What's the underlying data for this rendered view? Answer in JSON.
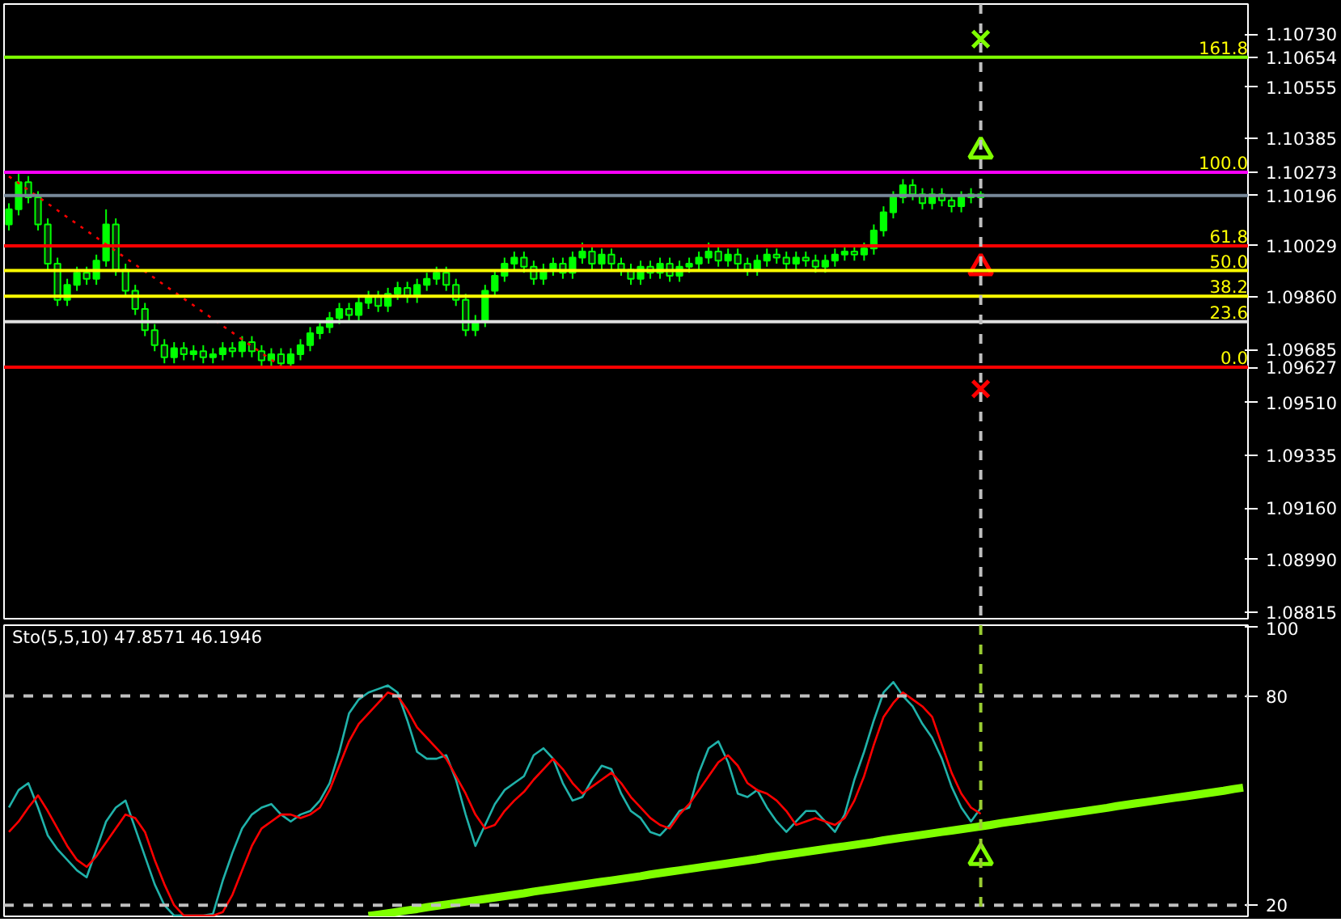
{
  "chart_data": [
    {
      "type": "candlestick",
      "color": "#00ff00",
      "tick_labels": "y",
      "ylim": [
        1.08794,
        1.1083
      ],
      "yticks": [
        {
          "value": 1.1073,
          "label": "1.10730"
        },
        {
          "value": 1.10654,
          "label": "1.10654"
        },
        {
          "value": 1.10555,
          "label": "1.10555"
        },
        {
          "value": 1.10385,
          "label": "1.10385"
        },
        {
          "value": 1.10273,
          "label": "1.10273"
        },
        {
          "value": 1.10196,
          "label": "1.10196"
        },
        {
          "value": 1.10029,
          "label": "1.10029"
        },
        {
          "value": 1.0986,
          "label": "1.09860"
        },
        {
          "value": 1.09685,
          "label": "1.09685"
        },
        {
          "value": 1.09627,
          "label": "1.09627"
        },
        {
          "value": 1.0951,
          "label": "1.09510"
        },
        {
          "value": 1.09335,
          "label": "1.09335"
        },
        {
          "value": 1.0916,
          "label": "1.09160"
        },
        {
          "value": 1.0899,
          "label": "1.08990"
        },
        {
          "value": 1.08815,
          "label": "1.08815"
        }
      ],
      "categories": [
        null,
        null,
        null,
        null,
        null,
        null,
        null,
        null,
        null,
        null,
        null,
        null,
        null,
        null,
        null,
        null,
        null,
        null,
        null,
        null,
        null,
        null,
        null,
        null,
        null,
        null,
        null,
        null,
        null,
        null,
        null,
        null,
        null,
        null,
        null,
        null,
        null,
        null,
        null,
        null,
        null,
        null,
        null,
        null,
        null,
        null,
        null,
        null,
        null,
        null,
        null,
        null,
        null,
        null,
        null,
        null,
        null,
        null,
        null,
        null,
        null,
        null,
        null,
        null,
        null,
        null,
        null,
        null,
        null,
        null,
        null,
        null,
        null,
        null,
        null,
        null,
        null,
        null,
        null,
        null,
        null,
        null,
        null,
        null,
        null,
        null,
        null,
        null,
        null,
        null,
        null,
        null,
        null,
        null,
        null,
        null,
        null,
        null,
        null,
        null,
        null,
        null,
        null,
        null,
        null,
        null,
        null,
        null,
        null,
        null,
        null,
        null,
        null,
        null,
        null,
        null,
        null,
        null,
        null,
        null,
        null,
        null,
        null,
        null,
        null,
        null,
        null,
        null
      ],
      "ohlc": [
        [
          1.101,
          1.1017,
          1.1008,
          1.1015
        ],
        [
          1.1015,
          1.1027,
          1.1013,
          1.1024
        ],
        [
          1.1024,
          1.1026,
          1.1017,
          1.1019
        ],
        [
          1.1019,
          1.1021,
          1.1008,
          1.101
        ],
        [
          1.101,
          1.1012,
          1.0995,
          1.0997
        ],
        [
          1.0997,
          1.0999,
          1.0983,
          1.0985
        ],
        [
          1.0985,
          1.0992,
          1.0983,
          1.099
        ],
        [
          1.099,
          1.0996,
          1.0988,
          1.0994
        ],
        [
          1.0994,
          1.0996,
          1.099,
          1.0992
        ],
        [
          1.0992,
          1.1,
          1.099,
          1.0998
        ],
        [
          1.0998,
          1.1015,
          1.0996,
          1.101
        ],
        [
          1.101,
          1.1012,
          1.0993,
          1.0995
        ],
        [
          1.0995,
          1.0997,
          1.0986,
          1.0988
        ],
        [
          1.0988,
          1.099,
          1.098,
          1.0982
        ],
        [
          1.0982,
          1.0984,
          1.0973,
          1.0975
        ],
        [
          1.0975,
          1.0977,
          1.0968,
          1.097
        ],
        [
          1.097,
          1.0972,
          1.0964,
          1.0966
        ],
        [
          1.0966,
          1.0971,
          1.0964,
          1.0969
        ],
        [
          1.0969,
          1.0971,
          1.0965,
          1.0967
        ],
        [
          1.0967,
          1.097,
          1.0965,
          1.0968
        ],
        [
          1.0968,
          1.097,
          1.0964,
          1.0966
        ],
        [
          1.0966,
          1.0969,
          1.0964,
          1.0967
        ],
        [
          1.0967,
          1.0971,
          1.0965,
          1.0969
        ],
        [
          1.0969,
          1.0971,
          1.0966,
          1.0968
        ],
        [
          1.0968,
          1.0973,
          1.0966,
          1.0971
        ],
        [
          1.0971,
          1.0973,
          1.0966,
          1.0968
        ],
        [
          1.0968,
          1.097,
          1.0963,
          1.0965
        ],
        [
          1.0965,
          1.0969,
          1.0963,
          1.0967
        ],
        [
          1.0967,
          1.0969,
          1.0963,
          1.0964
        ],
        [
          1.0964,
          1.0969,
          1.0963,
          1.0967
        ],
        [
          1.0967,
          1.0972,
          1.0965,
          1.097
        ],
        [
          1.097,
          1.0976,
          1.0968,
          1.0974
        ],
        [
          1.0974,
          1.0978,
          1.0972,
          1.0976
        ],
        [
          1.0976,
          1.0981,
          1.0974,
          1.0979
        ],
        [
          1.0979,
          1.0984,
          1.0977,
          1.0982
        ],
        [
          1.0982,
          1.0984,
          1.0978,
          1.098
        ],
        [
          1.098,
          1.0986,
          1.0978,
          1.0984
        ],
        [
          1.0984,
          1.0988,
          1.0982,
          1.0986
        ],
        [
          1.0986,
          1.0988,
          1.0981,
          1.0983
        ],
        [
          1.0983,
          1.0989,
          1.0981,
          1.0987
        ],
        [
          1.0987,
          1.0991,
          1.0985,
          1.0989
        ],
        [
          1.0989,
          1.0991,
          1.0984,
          1.0986
        ],
        [
          1.0986,
          1.0992,
          1.0984,
          1.099
        ],
        [
          1.099,
          1.0994,
          1.0988,
          1.0992
        ],
        [
          1.0992,
          1.0996,
          1.099,
          1.0994
        ],
        [
          1.0994,
          1.0996,
          1.0988,
          1.099
        ],
        [
          1.099,
          1.0992,
          1.0983,
          1.0985
        ],
        [
          1.0985,
          1.0987,
          1.0973,
          1.0975
        ],
        [
          1.0975,
          1.098,
          1.0973,
          1.0978
        ],
        [
          1.0978,
          1.099,
          1.0976,
          1.0988
        ],
        [
          1.0988,
          1.0995,
          1.0986,
          1.0993
        ],
        [
          1.0993,
          1.0999,
          1.0991,
          1.0997
        ],
        [
          1.0997,
          1.1001,
          1.0995,
          1.0999
        ],
        [
          1.0999,
          1.1001,
          1.0994,
          1.0996
        ],
        [
          1.0996,
          1.0998,
          1.099,
          1.0992
        ],
        [
          1.0992,
          1.0997,
          1.099,
          1.0995
        ],
        [
          1.0995,
          1.0999,
          1.0993,
          1.0997
        ],
        [
          1.0997,
          1.0999,
          1.0992,
          1.0994
        ],
        [
          1.0994,
          1.1001,
          1.0992,
          1.0999
        ],
        [
          1.0999,
          1.1004,
          1.0997,
          1.1001
        ],
        [
          1.1001,
          1.1003,
          1.0995,
          1.0997
        ],
        [
          1.0997,
          1.1002,
          1.0995,
          1.1
        ],
        [
          1.1,
          1.1002,
          1.0995,
          1.0997
        ],
        [
          1.0997,
          1.0999,
          1.0993,
          1.0995
        ],
        [
          1.0995,
          1.0997,
          1.099,
          1.0992
        ],
        [
          1.0992,
          1.0998,
          1.099,
          1.0996
        ],
        [
          1.0996,
          1.0998,
          1.0992,
          1.0994
        ],
        [
          1.0994,
          1.0999,
          1.0992,
          1.0997
        ],
        [
          1.0997,
          1.0999,
          1.0991,
          1.0993
        ],
        [
          1.0993,
          1.0998,
          1.0991,
          1.0996
        ],
        [
          1.0996,
          1.0999,
          1.0994,
          1.0997
        ],
        [
          1.0997,
          1.1001,
          1.0995,
          1.0999
        ],
        [
          1.0999,
          1.1004,
          1.0997,
          1.1001
        ],
        [
          1.1001,
          1.1003,
          1.0996,
          1.0998
        ],
        [
          1.0998,
          1.1002,
          1.0996,
          1.1
        ],
        [
          1.1,
          1.1002,
          1.0995,
          1.0997
        ],
        [
          1.0997,
          1.0999,
          1.0993,
          1.0995
        ],
        [
          1.0995,
          1.1,
          1.0993,
          1.0998
        ],
        [
          1.0998,
          1.1002,
          1.0996,
          1.1
        ],
        [
          1.1,
          1.1002,
          1.0997,
          1.0999
        ],
        [
          1.0999,
          1.1001,
          1.0995,
          1.0997
        ],
        [
          1.0997,
          1.1001,
          1.0995,
          1.0999
        ],
        [
          1.0999,
          1.1001,
          1.0996,
          1.0998
        ],
        [
          1.0998,
          1.1,
          1.0994,
          1.0996
        ],
        [
          1.0996,
          1.1,
          1.0994,
          1.0998
        ],
        [
          1.0998,
          1.1002,
          1.0996,
          1.1
        ],
        [
          1.1,
          1.1003,
          1.0998,
          1.1001
        ],
        [
          1.1001,
          1.1003,
          1.0998,
          1.1
        ],
        [
          1.1,
          1.1004,
          1.0998,
          1.1002
        ],
        [
          1.1002,
          1.101,
          1.1,
          1.1008
        ],
        [
          1.1008,
          1.1016,
          1.1006,
          1.1014
        ],
        [
          1.1014,
          1.1021,
          1.1012,
          1.1019
        ],
        [
          1.1019,
          1.1025,
          1.1017,
          1.1023
        ],
        [
          1.1023,
          1.1025,
          1.1018,
          1.102
        ],
        [
          1.102,
          1.1022,
          1.1015,
          1.1017
        ],
        [
          1.1017,
          1.1022,
          1.1015,
          1.102
        ],
        [
          1.102,
          1.1022,
          1.1016,
          1.1018
        ],
        [
          1.1018,
          1.102,
          1.1014,
          1.1016
        ],
        [
          1.1016,
          1.1021,
          1.1014,
          1.1019
        ],
        [
          1.1019,
          1.1022,
          1.1017,
          1.102
        ],
        [
          1.102,
          1.1021,
          1.1018,
          1.1019
        ],
        null,
        null,
        null,
        null,
        null,
        null,
        null,
        null,
        null,
        null,
        null,
        null,
        null,
        null,
        null,
        null,
        null,
        null,
        null,
        null,
        null,
        null,
        null,
        null,
        null,
        null,
        null
      ],
      "series": [
        {
          "type": "line",
          "color": "#ff0000",
          "line_style": "dotted",
          "values": [
            1.10259,
            1.10237,
            1.10214,
            1.10192,
            1.10169,
            1.10147,
            1.10124,
            1.10102,
            1.10079,
            1.10057,
            1.10034,
            1.10012,
            1.09989,
            1.09967,
            1.09944,
            1.09922,
            1.09899,
            1.09877,
            1.09854,
            1.09832,
            1.09809,
            1.09787,
            1.09764,
            1.09742,
            1.09719,
            1.09697,
            1.09674,
            1.09652,
            1.09629,
            null,
            null,
            null,
            null,
            null,
            null,
            null,
            null,
            null,
            null,
            null,
            null,
            null,
            null,
            null,
            null,
            null,
            null,
            null,
            null,
            null,
            null,
            null,
            null,
            null,
            null,
            null,
            null,
            null,
            null,
            null,
            null,
            null,
            null,
            null,
            null,
            null,
            null,
            null,
            null,
            null,
            null,
            null,
            null,
            null,
            null,
            null,
            null,
            null,
            null,
            null,
            null,
            null,
            null,
            null,
            null,
            null,
            null,
            null,
            null,
            null,
            null,
            null,
            null,
            null,
            null,
            null,
            null,
            null,
            null,
            null,
            null,
            null,
            null,
            null,
            null,
            null,
            null,
            null,
            null,
            null,
            null,
            null,
            null,
            null,
            null,
            null,
            null,
            null,
            null,
            null,
            null,
            null,
            null,
            null,
            null,
            null,
            null,
            null
          ]
        },
        {
          "type": "scatter",
          "marker": "cross",
          "color": "#7fff00",
          "values": [
            null,
            null,
            null,
            null,
            null,
            null,
            null,
            null,
            null,
            null,
            null,
            null,
            null,
            null,
            null,
            null,
            null,
            null,
            null,
            null,
            null,
            null,
            null,
            null,
            null,
            null,
            null,
            null,
            null,
            null,
            null,
            null,
            null,
            null,
            null,
            null,
            null,
            null,
            null,
            null,
            null,
            null,
            null,
            null,
            null,
            null,
            null,
            null,
            null,
            null,
            null,
            null,
            null,
            null,
            null,
            null,
            null,
            null,
            null,
            null,
            null,
            null,
            null,
            null,
            null,
            null,
            null,
            null,
            null,
            null,
            null,
            null,
            null,
            null,
            null,
            null,
            null,
            null,
            null,
            null,
            null,
            null,
            null,
            null,
            null,
            null,
            null,
            null,
            null,
            null,
            null,
            null,
            null,
            null,
            null,
            null,
            null,
            null,
            null,
            null,
            1.10714,
            null,
            null,
            null,
            null,
            null,
            null,
            null,
            null,
            null,
            null,
            null,
            null,
            null,
            null,
            null,
            null,
            null,
            null,
            null,
            null,
            null,
            null,
            null,
            null,
            null,
            null,
            null
          ]
        },
        {
          "type": "scatter",
          "marker": "triangle",
          "color": "#7fff00",
          "values": [
            null,
            null,
            null,
            null,
            null,
            null,
            null,
            null,
            null,
            null,
            null,
            null,
            null,
            null,
            null,
            null,
            null,
            null,
            null,
            null,
            null,
            null,
            null,
            null,
            null,
            null,
            null,
            null,
            null,
            null,
            null,
            null,
            null,
            null,
            null,
            null,
            null,
            null,
            null,
            null,
            null,
            null,
            null,
            null,
            null,
            null,
            null,
            null,
            null,
            null,
            null,
            null,
            null,
            null,
            null,
            null,
            null,
            null,
            null,
            null,
            null,
            null,
            null,
            null,
            null,
            null,
            null,
            null,
            null,
            null,
            null,
            null,
            null,
            null,
            null,
            null,
            null,
            null,
            null,
            null,
            null,
            null,
            null,
            null,
            null,
            null,
            null,
            null,
            null,
            null,
            null,
            null,
            null,
            null,
            null,
            null,
            null,
            null,
            null,
            null,
            1.10343,
            null,
            null,
            null,
            null,
            null,
            null,
            null,
            null,
            null,
            null,
            null,
            null,
            null,
            null,
            null,
            null,
            null,
            null,
            null,
            null,
            null,
            null,
            null,
            null,
            null,
            null,
            null
          ]
        },
        {
          "type": "scatter",
          "marker": "triangle",
          "color": "#ff0000",
          "values": [
            null,
            null,
            null,
            null,
            null,
            null,
            null,
            null,
            null,
            null,
            null,
            null,
            null,
            null,
            null,
            null,
            null,
            null,
            null,
            null,
            null,
            null,
            null,
            null,
            null,
            null,
            null,
            null,
            null,
            null,
            null,
            null,
            null,
            null,
            null,
            null,
            null,
            null,
            null,
            null,
            null,
            null,
            null,
            null,
            null,
            null,
            null,
            null,
            null,
            null,
            null,
            null,
            null,
            null,
            null,
            null,
            null,
            null,
            null,
            null,
            null,
            null,
            null,
            null,
            null,
            null,
            null,
            null,
            null,
            null,
            null,
            null,
            null,
            null,
            null,
            null,
            null,
            null,
            null,
            null,
            null,
            null,
            null,
            null,
            null,
            null,
            null,
            null,
            null,
            null,
            null,
            null,
            null,
            null,
            null,
            null,
            null,
            null,
            null,
            null,
            1.09957,
            null,
            null,
            null,
            null,
            null,
            null,
            null,
            null,
            null,
            null,
            null,
            null,
            null,
            null,
            null,
            null,
            null,
            null,
            null,
            null,
            null,
            null,
            null,
            null,
            null,
            null,
            null
          ]
        },
        {
          "type": "scatter",
          "marker": "cross",
          "color": "#ff0000",
          "values": [
            null,
            null,
            null,
            null,
            null,
            null,
            null,
            null,
            null,
            null,
            null,
            null,
            null,
            null,
            null,
            null,
            null,
            null,
            null,
            null,
            null,
            null,
            null,
            null,
            null,
            null,
            null,
            null,
            null,
            null,
            null,
            null,
            null,
            null,
            null,
            null,
            null,
            null,
            null,
            null,
            null,
            null,
            null,
            null,
            null,
            null,
            null,
            null,
            null,
            null,
            null,
            null,
            null,
            null,
            null,
            null,
            null,
            null,
            null,
            null,
            null,
            null,
            null,
            null,
            null,
            null,
            null,
            null,
            null,
            null,
            null,
            null,
            null,
            null,
            null,
            null,
            null,
            null,
            null,
            null,
            null,
            null,
            null,
            null,
            null,
            null,
            null,
            null,
            null,
            null,
            null,
            null,
            null,
            null,
            null,
            null,
            null,
            null,
            null,
            null,
            1.09555,
            null,
            null,
            null,
            null,
            null,
            null,
            null,
            null,
            null,
            null,
            null,
            null,
            null,
            null,
            null,
            null,
            null,
            null,
            null,
            null,
            null,
            null,
            null,
            null,
            null,
            null,
            null
          ]
        }
      ],
      "annotations": [
        {
          "text": "161.8",
          "y": 1.10654
        },
        {
          "text": "100.0",
          "y": 1.10273
        },
        {
          "text": "61.8",
          "y": 1.10029
        },
        {
          "text": "50.0",
          "y": 1.09947
        },
        {
          "text": "38.2",
          "y": 1.09862
        },
        {
          "text": "23.6",
          "y": 1.09778
        },
        {
          "text": "0.0",
          "y": 1.09627
        }
      ],
      "ref_lines": [
        {
          "axis": "y",
          "value": 1.10654,
          "color": "#7fff00"
        },
        {
          "axis": "y",
          "value": 1.10273,
          "color": "#ff00ff"
        },
        {
          "axis": "y",
          "value": 1.10196,
          "color": "#778899"
        },
        {
          "axis": "y",
          "value": 1.10029,
          "color": "#ff0000"
        },
        {
          "axis": "y",
          "value": 1.09947,
          "color": "#ffff00"
        },
        {
          "axis": "y",
          "value": 1.09862,
          "color": "#ffff00"
        },
        {
          "axis": "y",
          "value": 1.09778,
          "color": "#e0e0e0"
        },
        {
          "axis": "y",
          "value": 1.09627,
          "color": "#ff0000"
        },
        {
          "axis": "x",
          "value": null,
          "color": "#c0c0c0",
          "line_style": "dashed"
        }
      ]
    },
    {
      "type": "line",
      "title": "Sto(5,5,10) 47.8571 46.1946",
      "tick_labels": "y",
      "ylim": [
        16.8,
        100.3
      ],
      "yticks": [
        100,
        80,
        20
      ],
      "categories": [
        null,
        null,
        null,
        null,
        null,
        null,
        null,
        null,
        null,
        null,
        null,
        null,
        null,
        null,
        null,
        null,
        null,
        null,
        null,
        null,
        null,
        null,
        null,
        null,
        null,
        null,
        null,
        null,
        null,
        null,
        null,
        null,
        null,
        null,
        null,
        null,
        null,
        null,
        null,
        null,
        null,
        null,
        null,
        null,
        null,
        null,
        null,
        null,
        null,
        null,
        null,
        null,
        null,
        null,
        null,
        null,
        null,
        null,
        null,
        null,
        null,
        null,
        null,
        null,
        null,
        null,
        null,
        null,
        null,
        null,
        null,
        null,
        null,
        null,
        null,
        null,
        null,
        null,
        null,
        null,
        null,
        null,
        null,
        null,
        null,
        null,
        null,
        null,
        null,
        null,
        null,
        null,
        null,
        null,
        null,
        null,
        null,
        null,
        null,
        null,
        null,
        null,
        null,
        null,
        null,
        null,
        null,
        null,
        null,
        null,
        null,
        null,
        null,
        null,
        null,
        null,
        null,
        null,
        null,
        null,
        null,
        null,
        null,
        null,
        null,
        null,
        null,
        null
      ],
      "series": [
        {
          "color": "#20b2aa",
          "values": [
            48,
            53,
            55,
            48,
            40,
            36,
            33,
            30,
            28,
            36,
            44,
            48,
            50,
            42,
            34,
            26,
            20,
            17,
            17,
            17,
            17,
            17.5,
            27,
            35,
            42,
            46,
            48,
            49,
            46,
            44,
            46,
            47,
            50,
            55,
            64,
            75,
            79,
            81,
            82,
            83,
            81,
            73,
            64,
            62,
            62,
            63,
            56,
            46,
            37,
            43,
            49,
            53,
            55,
            57,
            63,
            65,
            62,
            55,
            50,
            51,
            56,
            60,
            59,
            52,
            47,
            45,
            41,
            40,
            43,
            47,
            48,
            58,
            65,
            67,
            61,
            52,
            51,
            53,
            48,
            44,
            41,
            44,
            47,
            47,
            44,
            41,
            46,
            56,
            64,
            73,
            81,
            84,
            80,
            77,
            72,
            68,
            62,
            54,
            48,
            44,
            47.9,
            null,
            null,
            null,
            null,
            null,
            null,
            null,
            null,
            null,
            null,
            null,
            null,
            null,
            null,
            null,
            null,
            null,
            null,
            null,
            null,
            null,
            null,
            null,
            null,
            null,
            null,
            null
          ]
        },
        {
          "color": "#ff0000",
          "values": [
            41,
            44,
            48,
            51.5,
            47,
            42,
            37,
            33,
            31,
            34,
            38,
            42,
            46,
            45,
            41,
            33,
            26,
            20,
            17,
            17,
            17,
            17,
            18,
            23,
            30,
            37,
            42,
            44,
            46,
            46,
            45,
            46,
            48,
            53,
            60,
            67,
            72,
            75,
            78,
            81,
            80,
            76,
            71,
            68,
            65,
            62,
            57,
            52,
            46,
            42,
            43,
            47,
            50,
            52.5,
            56,
            59,
            62,
            59,
            55,
            52,
            54,
            56,
            58,
            55,
            51,
            48,
            45,
            43,
            42,
            46,
            49,
            53,
            57,
            61,
            63,
            60,
            55,
            53,
            52,
            50,
            47,
            43,
            44,
            45,
            44,
            43,
            45,
            50,
            57,
            66,
            74,
            78,
            81,
            79,
            77,
            74,
            66,
            58,
            52,
            48,
            46.2,
            null,
            null,
            null,
            null,
            null,
            null,
            null,
            null,
            null,
            null,
            null,
            null,
            null,
            null,
            null,
            null,
            null,
            null,
            null,
            null,
            null,
            null,
            null,
            null,
            null,
            null,
            null
          ]
        },
        {
          "color": "#7fff00",
          "values": [
            null,
            null,
            null,
            null,
            null,
            null,
            null,
            null,
            null,
            null,
            null,
            null,
            null,
            null,
            null,
            null,
            null,
            null,
            null,
            null,
            null,
            null,
            null,
            null,
            null,
            null,
            null,
            null,
            null,
            null,
            null,
            null,
            null,
            null,
            null,
            null,
            null,
            16.9,
            17.3,
            17.7,
            18.1,
            18.5,
            18.9,
            19.4,
            19.8,
            20.2,
            20.6,
            21.0,
            21.4,
            21.8,
            22.2,
            22.6,
            23.0,
            23.4,
            23.9,
            24.3,
            24.7,
            25.1,
            25.5,
            25.9,
            26.3,
            26.7,
            27.1,
            27.5,
            27.9,
            28.3,
            28.8,
            29.2,
            29.6,
            30.0,
            30.4,
            30.8,
            31.2,
            31.6,
            32.0,
            32.4,
            32.8,
            33.2,
            33.7,
            34.1,
            34.5,
            34.9,
            35.3,
            35.7,
            36.1,
            36.5,
            36.9,
            37.3,
            37.7,
            38.1,
            38.6,
            39.0,
            39.4,
            39.8,
            40.2,
            40.6,
            41.0,
            41.4,
            41.8,
            42.2,
            42.6,
            43.0,
            43.5,
            43.9,
            44.3,
            44.7,
            45.1,
            45.5,
            45.9,
            46.3,
            46.7,
            47.1,
            47.5,
            47.9,
            48.4,
            48.8,
            49.2,
            49.6,
            50.0,
            50.4,
            50.8,
            51.2,
            51.6,
            52.0,
            52.4,
            52.8,
            53.3,
            53.7
          ]
        },
        {
          "type": "scatter",
          "marker": "triangle",
          "color": "#7fff00",
          "values": [
            null,
            null,
            null,
            null,
            null,
            null,
            null,
            null,
            null,
            null,
            null,
            null,
            null,
            null,
            null,
            null,
            null,
            null,
            null,
            null,
            null,
            null,
            null,
            null,
            null,
            null,
            null,
            null,
            null,
            null,
            null,
            null,
            null,
            null,
            null,
            null,
            null,
            null,
            null,
            null,
            null,
            null,
            null,
            null,
            null,
            null,
            null,
            null,
            null,
            null,
            null,
            null,
            null,
            null,
            null,
            null,
            null,
            null,
            null,
            null,
            null,
            null,
            null,
            null,
            null,
            null,
            null,
            null,
            null,
            null,
            null,
            null,
            null,
            null,
            null,
            null,
            null,
            null,
            null,
            null,
            null,
            null,
            null,
            null,
            null,
            null,
            null,
            null,
            null,
            null,
            null,
            null,
            null,
            null,
            null,
            null,
            null,
            null,
            null,
            null,
            33.7,
            null,
            null,
            null,
            null,
            null,
            null,
            null,
            null,
            null,
            null,
            null,
            null,
            null,
            null,
            null,
            null,
            null,
            null,
            null,
            null,
            null,
            null,
            null,
            null,
            null,
            null,
            null
          ]
        }
      ],
      "ref_lines": [
        {
          "axis": "y",
          "value": 80,
          "color": "#c0c0c0",
          "line_style": "dashed"
        },
        {
          "axis": "y",
          "value": 20,
          "color": "#c0c0c0",
          "line_style": "dashed"
        },
        {
          "axis": "x",
          "value": null,
          "color": "#9acd32",
          "line_style": "dashed"
        }
      ]
    }
  ]
}
